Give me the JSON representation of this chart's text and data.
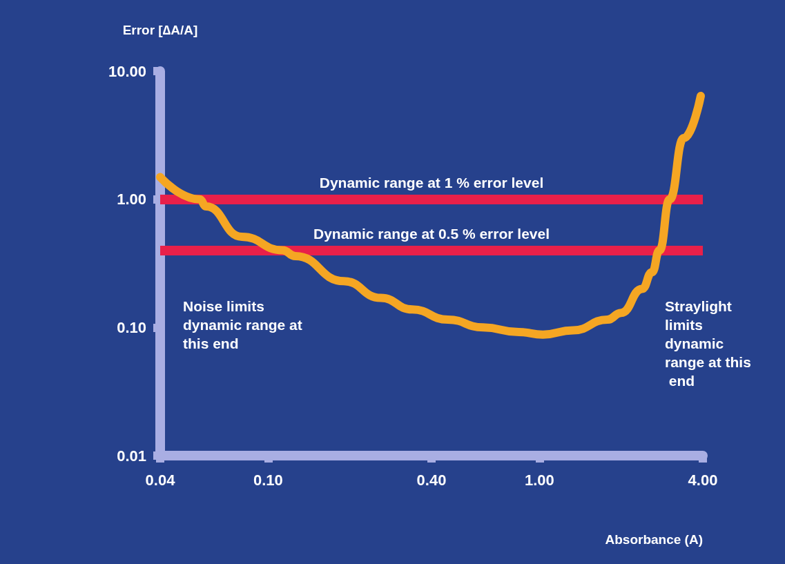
{
  "chart_data": {
    "type": "line",
    "xlabel": "Absorbance (A)",
    "ylabel": "Error [∆A/A]",
    "log": "xy",
    "xlim": [
      0.04,
      4
    ],
    "ylim": [
      0.01,
      10
    ],
    "xticks": [
      {
        "value": 0.04,
        "label": "0.04"
      },
      {
        "value": 0.1,
        "label": "0.10"
      },
      {
        "value": 0.4,
        "label": "0.40"
      },
      {
        "value": 1,
        "label": "1.00"
      },
      {
        "value": 4,
        "label": "4.00"
      }
    ],
    "yticks": [
      {
        "value": 0.01,
        "label": "0.01"
      },
      {
        "value": 0.1,
        "label": "0.10"
      },
      {
        "value": 1,
        "label": "1.00"
      },
      {
        "value": 10,
        "label": "10.00"
      }
    ],
    "series": [
      {
        "color": "#f5a623",
        "x": [
          0.04,
          0.056,
          0.059,
          0.08,
          0.113,
          0.126,
          0.19,
          0.26,
          0.34,
          0.46,
          0.62,
          0.84,
          1.03,
          1.33,
          1.78,
          2.0,
          2.39,
          2.6,
          2.77,
          3.02,
          3.4,
          3.93
        ],
        "values": [
          1.49,
          1.0,
          0.88,
          0.51,
          0.4,
          0.36,
          0.23,
          0.17,
          0.138,
          0.115,
          0.1,
          0.092,
          0.088,
          0.095,
          0.115,
          0.13,
          0.2,
          0.27,
          0.4,
          1.0,
          3.0,
          6.4
        ]
      }
    ],
    "ref_lines": [
      {
        "axis": "y",
        "value": 1,
        "label": "Dynamic range at 1 % error level",
        "color": "#e8204a"
      },
      {
        "axis": "y",
        "value": 0.4,
        "label": "Dynamic range at 0.5 % error level",
        "color": "#e8204a"
      }
    ],
    "annotations": [
      "Noise limits dynamic range at this end",
      "Straylight limits dynamic range at this end"
    ],
    "grid": false,
    "line_style": "solid"
  }
}
